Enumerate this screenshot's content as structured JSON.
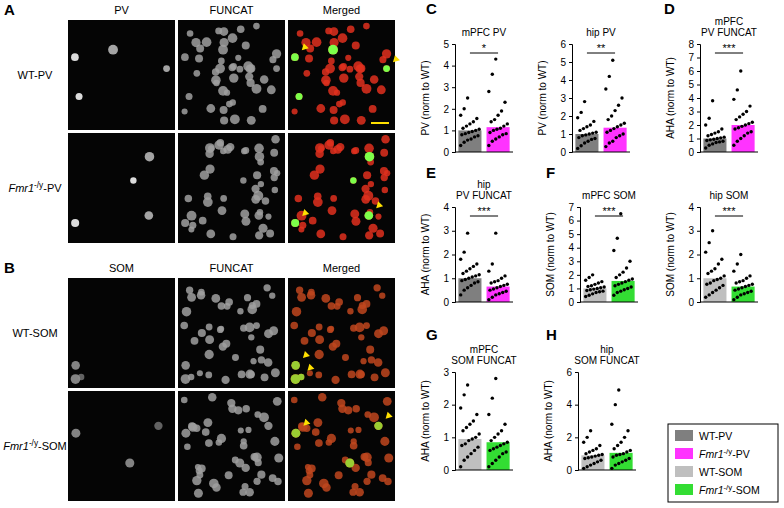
{
  "chart_data": [
    {
      "type": "bar",
      "panel": "C",
      "title": [
        "mPFC PV"
      ],
      "ylabel": "PV (norm to WT)",
      "annotation": "*",
      "categories": [
        null,
        null
      ],
      "values": [
        1.0,
        1.15
      ],
      "colors": [
        "#7f7f7f",
        "#ff33ff"
      ],
      "points": [
        [
          0.3,
          0.45,
          0.55,
          0.6,
          0.7,
          0.75,
          0.8,
          0.85,
          0.9,
          0.95,
          1.0,
          1.05,
          1.1,
          1.2,
          1.3,
          1.4,
          1.55,
          1.7,
          2.0,
          2.5
        ],
        [
          0.3,
          0.5,
          0.6,
          0.7,
          0.8,
          0.85,
          0.9,
          1.0,
          1.05,
          1.1,
          1.2,
          1.3,
          1.4,
          1.5,
          1.7,
          1.9,
          2.3,
          2.8,
          3.6,
          4.3
        ]
      ],
      "ylim": [
        0,
        5
      ],
      "yticks": [
        0,
        1,
        2,
        3,
        4,
        5
      ],
      "tick_labels": "y"
    },
    {
      "type": "bar",
      "title": [
        "hip PV"
      ],
      "ylabel": "PV (norm to WT)",
      "annotation": "**",
      "categories": [
        null,
        null
      ],
      "values": [
        1.0,
        1.35
      ],
      "colors": [
        "#7f7f7f",
        "#ff33ff"
      ],
      "points": [
        [
          0.2,
          0.35,
          0.5,
          0.6,
          0.7,
          0.75,
          0.8,
          0.9,
          0.95,
          1.0,
          1.05,
          1.1,
          1.2,
          1.3,
          1.4,
          1.5,
          1.7,
          1.9,
          2.2,
          2.8
        ],
        [
          0.3,
          0.5,
          0.6,
          0.8,
          0.9,
          1.0,
          1.1,
          1.2,
          1.3,
          1.4,
          1.5,
          1.6,
          1.8,
          2.0,
          2.3,
          2.6,
          3.0,
          3.5,
          4.2,
          5.1
        ]
      ],
      "ylim": [
        0,
        6
      ],
      "yticks": [
        0,
        1,
        2,
        3,
        4,
        5,
        6
      ],
      "tick_labels": "y"
    },
    {
      "type": "bar",
      "panel": "D",
      "title": [
        "mPFC",
        "PV FUNCAT"
      ],
      "ylabel": "AHA (norm to WT)",
      "annotation": "***",
      "categories": [
        null,
        null
      ],
      "values": [
        1.0,
        2.0
      ],
      "colors": [
        "#7f7f7f",
        "#ff33ff"
      ],
      "points": [
        [
          0.3,
          0.5,
          0.6,
          0.7,
          0.75,
          0.8,
          0.85,
          0.9,
          0.95,
          1.0,
          1.05,
          1.1,
          1.2,
          1.3,
          1.4,
          1.5,
          1.7,
          2.0,
          2.5,
          3.8
        ],
        [
          0.5,
          0.8,
          1.0,
          1.2,
          1.4,
          1.5,
          1.7,
          1.8,
          1.9,
          2.0,
          2.1,
          2.2,
          2.4,
          2.6,
          2.8,
          3.0,
          3.4,
          3.9,
          4.6,
          6.0
        ]
      ],
      "ylim": [
        0,
        8
      ],
      "yticks": [
        0,
        1,
        2,
        3,
        4,
        5,
        6,
        7,
        8
      ],
      "tick_labels": "y"
    },
    {
      "type": "bar",
      "panel": "E",
      "title": [
        "hip",
        "PV FUNCAT"
      ],
      "ylabel": "AHA (norm to WT)",
      "annotation": "***",
      "categories": [
        null,
        null
      ],
      "values": [
        1.0,
        0.65
      ],
      "colors": [
        "#7f7f7f",
        "#ff33ff"
      ],
      "points": [
        [
          0.3,
          0.5,
          0.6,
          0.7,
          0.8,
          0.85,
          0.9,
          0.95,
          1.0,
          1.05,
          1.1,
          1.15,
          1.2,
          1.3,
          1.4,
          1.5,
          1.6,
          1.8,
          2.1,
          2.9
        ],
        [
          0.1,
          0.2,
          0.3,
          0.35,
          0.4,
          0.45,
          0.5,
          0.55,
          0.6,
          0.65,
          0.7,
          0.75,
          0.8,
          0.85,
          0.9,
          1.0,
          1.1,
          1.3,
          1.6,
          2.9
        ]
      ],
      "ylim": [
        0,
        4
      ],
      "yticks": [
        0,
        1,
        2,
        3,
        4
      ],
      "tick_labels": "y"
    },
    {
      "type": "bar",
      "panel": "F",
      "title": [
        "mPFC SOM"
      ],
      "ylabel": "SOM (norm to WT)",
      "annotation": "***",
      "categories": [
        null,
        null
      ],
      "values": [
        1.0,
        1.55
      ],
      "colors": [
        "#bfbfbf",
        "#33dd33"
      ],
      "points": [
        [
          0.4,
          0.5,
          0.6,
          0.7,
          0.75,
          0.8,
          0.85,
          0.9,
          0.95,
          1.0,
          1.05,
          1.1,
          1.15,
          1.2,
          1.3,
          1.4,
          1.5,
          1.6,
          1.8,
          2.0
        ],
        [
          0.5,
          0.7,
          0.8,
          0.9,
          1.0,
          1.1,
          1.2,
          1.3,
          1.4,
          1.5,
          1.6,
          1.7,
          1.8,
          2.0,
          2.2,
          2.5,
          3.0,
          3.8,
          4.7,
          6.5
        ]
      ],
      "ylim": [
        0,
        7
      ],
      "yticks": [
        0,
        1,
        2,
        3,
        4,
        5,
        6,
        7
      ],
      "tick_labels": "y"
    },
    {
      "type": "bar",
      "title": [
        "hip SOM"
      ],
      "ylabel": "SOM (norm to WT)",
      "annotation": "***",
      "categories": [
        null,
        null
      ],
      "values": [
        1.0,
        0.65
      ],
      "colors": [
        "#bfbfbf",
        "#33dd33"
      ],
      "points": [
        [
          0.2,
          0.3,
          0.4,
          0.5,
          0.6,
          0.7,
          0.75,
          0.8,
          0.9,
          0.95,
          1.0,
          1.1,
          1.2,
          1.3,
          1.4,
          1.6,
          1.8,
          2.1,
          2.5,
          3.0
        ],
        [
          0.1,
          0.2,
          0.3,
          0.35,
          0.4,
          0.45,
          0.5,
          0.55,
          0.6,
          0.65,
          0.7,
          0.75,
          0.8,
          0.85,
          0.9,
          1.0,
          1.1,
          1.3,
          1.6,
          2.0
        ]
      ],
      "ylim": [
        0,
        4
      ],
      "yticks": [
        0,
        1,
        2,
        3,
        4
      ],
      "tick_labels": "y"
    },
    {
      "type": "bar",
      "panel": "G",
      "title": [
        "mPFC",
        "SOM FUNCAT"
      ],
      "ylabel": "AHA (norm to WT)",
      "categories": [
        null,
        null
      ],
      "values": [
        0.95,
        0.85
      ],
      "colors": [
        "#bfbfbf",
        "#33dd33"
      ],
      "points": [
        [
          0.1,
          0.3,
          0.4,
          0.5,
          0.6,
          0.7,
          0.75,
          0.8,
          0.9,
          0.95,
          1.0,
          1.1,
          1.2,
          1.3,
          1.4,
          1.5,
          1.7,
          1.9,
          2.3,
          2.6
        ],
        [
          0.1,
          0.2,
          0.3,
          0.4,
          0.5,
          0.55,
          0.6,
          0.65,
          0.7,
          0.75,
          0.8,
          0.85,
          0.9,
          1.0,
          1.1,
          1.2,
          1.4,
          1.7,
          2.2,
          2.8
        ]
      ],
      "ylim": [
        0,
        3
      ],
      "yticks": [
        0,
        1,
        2,
        3
      ],
      "tick_labels": "y"
    },
    {
      "type": "bar",
      "panel": "H",
      "title": [
        "hip",
        "SOM FUNCAT"
      ],
      "ylabel": "AHA (norm to WT)",
      "categories": [
        null,
        null
      ],
      "values": [
        0.9,
        1.05
      ],
      "colors": [
        "#bfbfbf",
        "#33dd33"
      ],
      "points": [
        [
          0.1,
          0.2,
          0.3,
          0.4,
          0.5,
          0.6,
          0.7,
          0.75,
          0.8,
          0.85,
          0.9,
          0.95,
          1.0,
          1.1,
          1.2,
          1.3,
          1.5,
          1.7,
          2.0,
          2.4
        ],
        [
          0.1,
          0.3,
          0.4,
          0.5,
          0.6,
          0.7,
          0.8,
          0.9,
          0.95,
          1.0,
          1.1,
          1.2,
          1.3,
          1.5,
          1.7,
          2.0,
          2.4,
          2.8,
          4.0,
          4.9
        ]
      ],
      "ylim": [
        0,
        6
      ],
      "yticks": [
        0,
        2,
        4,
        6
      ],
      "tick_labels": "y"
    }
  ],
  "figure_legend": [
    {
      "name": "WT-PV",
      "color": "#7f7f7f"
    },
    {
      "name": "Fmr1-/y-PV",
      "color": "#ff33ff"
    },
    {
      "name": "WT-SOM",
      "color": "#bfbfbf"
    },
    {
      "name": "Fmr1-/y-SOM",
      "color": "#33dd33"
    }
  ],
  "image_panels": [
    {
      "panel": "A",
      "columns": [
        "PV",
        "FUNCAT",
        "Merged"
      ],
      "rows": [
        "WT-PV",
        "Fmr1-/y-PV"
      ]
    },
    {
      "panel": "B",
      "columns": [
        "SOM",
        "FUNCAT",
        "Merged"
      ],
      "rows": [
        "WT-SOM",
        "Fmr1-/y-SOM"
      ]
    }
  ]
}
